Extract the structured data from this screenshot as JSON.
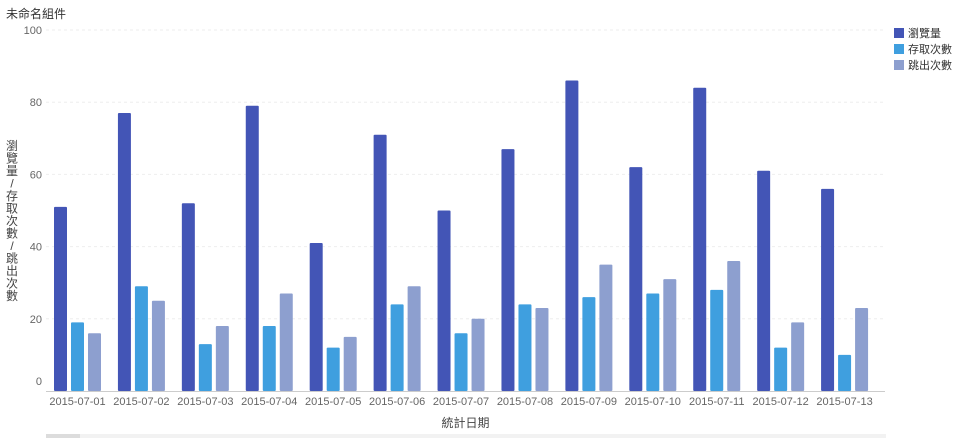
{
  "widget": {
    "title": "未命名組件"
  },
  "chart_data": {
    "type": "bar",
    "title": "",
    "xlabel": "統計日期",
    "ylabel": "瀏覽量/存取次數/跳出次數",
    "ylim": [
      0,
      100
    ],
    "yticks": [
      0,
      20,
      40,
      60,
      80,
      100
    ],
    "grid": true,
    "legend_position": "top-right",
    "categories": [
      "2015-07-01",
      "2015-07-02",
      "2015-07-03",
      "2015-07-04",
      "2015-07-05",
      "2015-07-06",
      "2015-07-07",
      "2015-07-08",
      "2015-07-09",
      "2015-07-10",
      "2015-07-11",
      "2015-07-12",
      "2015-07-13"
    ],
    "series": [
      {
        "name": "瀏覽量",
        "color": "#4355b6",
        "values": [
          51,
          77,
          52,
          79,
          41,
          71,
          50,
          67,
          86,
          62,
          84,
          61,
          56
        ]
      },
      {
        "name": "存取次數",
        "color": "#3f9fdf",
        "values": [
          19,
          29,
          13,
          18,
          12,
          24,
          16,
          24,
          26,
          27,
          28,
          12,
          10
        ]
      },
      {
        "name": "跳出次數",
        "color": "#8d9fcf",
        "values": [
          16,
          25,
          18,
          27,
          15,
          29,
          20,
          23,
          35,
          31,
          36,
          19,
          23
        ]
      }
    ]
  }
}
